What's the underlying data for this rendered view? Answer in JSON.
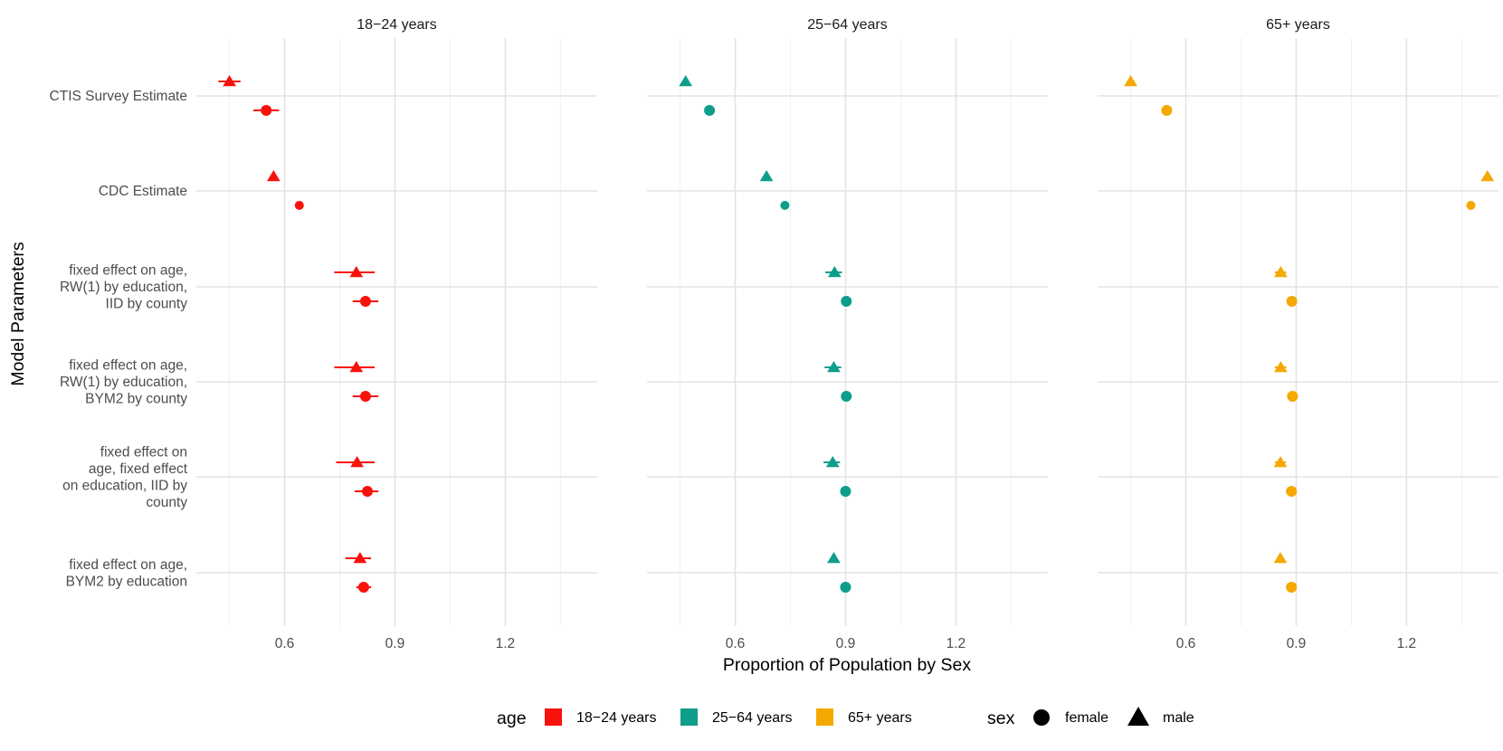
{
  "chart_data": {
    "type": "scatter",
    "subtype": "dot-and-errorbar, faceted by age",
    "xlabel": "Proportion of Population by Sex",
    "ylabel": "Model Parameters",
    "x_ticks": [
      0.6,
      0.9,
      1.2
    ],
    "xlim": [
      0.36,
      1.45
    ],
    "grid": true,
    "legend_position": "bottom",
    "facets": [
      "18−24 years",
      "25−64 years",
      "65+ years"
    ],
    "categories": [
      [
        "CTIS Survey Estimate"
      ],
      [
        "CDC Estimate"
      ],
      [
        "fixed effect on age,",
        "RW(1) by education,",
        "IID by county"
      ],
      [
        "fixed effect on age,",
        "RW(1) by education,",
        "BYM2 by county"
      ],
      [
        "fixed effect on",
        "age, fixed effect",
        "on education, IID by",
        "county"
      ],
      [
        "fixed effect on age,",
        "BYM2 by education"
      ]
    ],
    "legend": {
      "age_title": "age",
      "age": [
        {
          "label": "18−24 years",
          "color": "#F8120C"
        },
        {
          "label": "25−64 years",
          "color": "#0E9E8A"
        },
        {
          "label": "65+ years",
          "color": "#F5A800"
        }
      ],
      "sex_title": "sex",
      "sex": [
        {
          "label": "female",
          "shape": "circle"
        },
        {
          "label": "male",
          "shape": "triangle"
        }
      ]
    },
    "series": [
      {
        "facet": 0,
        "sex": "male",
        "color": "#F8120C",
        "values": [
          0.45,
          0.57,
          0.795,
          0.795,
          0.797,
          0.805
        ],
        "lo": [
          0.42,
          null,
          0.735,
          0.735,
          0.74,
          0.765
        ],
        "hi": [
          0.48,
          null,
          0.845,
          0.845,
          0.845,
          0.835
        ]
      },
      {
        "facet": 0,
        "sex": "female",
        "color": "#F8120C",
        "values": [
          0.55,
          0.64,
          0.82,
          0.82,
          0.825,
          0.815
        ],
        "lo": [
          0.515,
          null,
          0.785,
          0.785,
          0.79,
          0.795
        ],
        "hi": [
          0.585,
          null,
          0.855,
          0.855,
          0.855,
          0.835
        ]
      },
      {
        "facet": 1,
        "sex": "male",
        "color": "#0E9E8A",
        "values": [
          0.465,
          0.685,
          0.87,
          0.868,
          0.865,
          0.868
        ],
        "lo": [
          null,
          null,
          0.845,
          0.843,
          0.84,
          null
        ],
        "hi": [
          null,
          null,
          0.89,
          0.888,
          0.885,
          null
        ]
      },
      {
        "facet": 1,
        "sex": "female",
        "color": "#0E9E8A",
        "values": [
          0.53,
          0.735,
          0.902,
          0.902,
          0.9,
          0.9
        ],
        "lo": [
          null,
          null,
          0.89,
          0.89,
          0.888,
          null
        ],
        "hi": [
          null,
          null,
          0.915,
          0.915,
          0.913,
          null
        ]
      },
      {
        "facet": 2,
        "sex": "male",
        "color": "#F5A800",
        "values": [
          0.45,
          1.42,
          0.858,
          0.858,
          0.857,
          0.857
        ],
        "lo": [
          0.44,
          null,
          0.842,
          0.842,
          0.842,
          null
        ],
        "hi": [
          0.46,
          null,
          0.873,
          0.873,
          0.872,
          null
        ]
      },
      {
        "facet": 2,
        "sex": "female",
        "color": "#F5A800",
        "values": [
          0.548,
          1.375,
          0.888,
          0.89,
          0.887,
          0.887
        ],
        "lo": [
          0.54,
          null,
          0.88,
          0.882,
          0.879,
          null
        ],
        "hi": [
          0.556,
          null,
          0.896,
          0.898,
          0.895,
          null
        ]
      }
    ]
  }
}
